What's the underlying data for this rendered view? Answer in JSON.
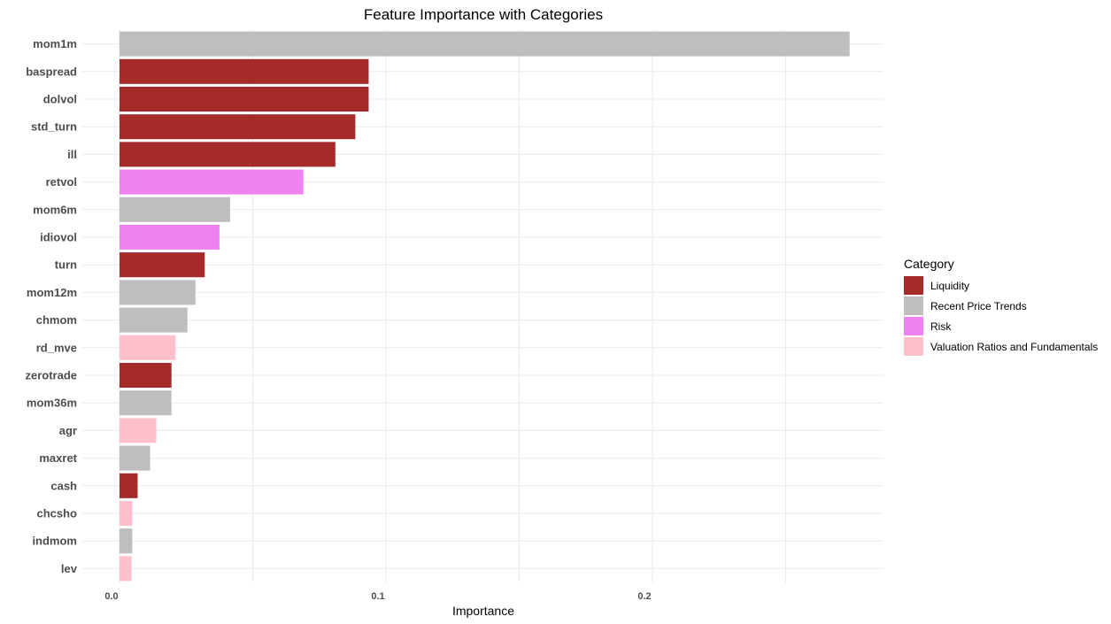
{
  "chart_data": {
    "type": "bar",
    "orientation": "horizontal",
    "title": "Feature Importance with Categories",
    "xlabel": "Importance",
    "ylabel": "",
    "xlim": [
      -0.007,
      0.29
    ],
    "xticks": [
      0.0,
      0.1,
      0.2
    ],
    "xtick_labels": [
      "0.0",
      "0.1",
      "0.2"
    ],
    "grid": true,
    "legend_position": "right",
    "legend_title": "Category",
    "categories_legend": [
      {
        "name": "Liquidity",
        "color": "#a52a2a"
      },
      {
        "name": "Recent Price Trends",
        "color": "#bebebe"
      },
      {
        "name": "Risk",
        "color": "#ee82ee"
      },
      {
        "name": "Valuation Ratios and Fundamentals",
        "color": "#ffc0cb"
      }
    ],
    "bars": [
      {
        "feature": "mom1m",
        "value": 0.274,
        "category": "Recent Price Trends"
      },
      {
        "feature": "baspread",
        "value": 0.0935,
        "category": "Liquidity"
      },
      {
        "feature": "dolvol",
        "value": 0.0935,
        "category": "Liquidity"
      },
      {
        "feature": "std_turn",
        "value": 0.0885,
        "category": "Liquidity"
      },
      {
        "feature": "ill",
        "value": 0.081,
        "category": "Liquidity"
      },
      {
        "feature": "retvol",
        "value": 0.069,
        "category": "Risk"
      },
      {
        "feature": "mom6m",
        "value": 0.0415,
        "category": "Recent Price Trends"
      },
      {
        "feature": "idiovol",
        "value": 0.0375,
        "category": "Risk"
      },
      {
        "feature": "turn",
        "value": 0.032,
        "category": "Liquidity"
      },
      {
        "feature": "mom12m",
        "value": 0.0285,
        "category": "Recent Price Trends"
      },
      {
        "feature": "chmom",
        "value": 0.0255,
        "category": "Recent Price Trends"
      },
      {
        "feature": "rd_mve",
        "value": 0.021,
        "category": "Valuation Ratios and Fundamentals"
      },
      {
        "feature": "zerotrade",
        "value": 0.0195,
        "category": "Liquidity"
      },
      {
        "feature": "mom36m",
        "value": 0.0195,
        "category": "Recent Price Trends"
      },
      {
        "feature": "agr",
        "value": 0.0138,
        "category": "Valuation Ratios and Fundamentals"
      },
      {
        "feature": "maxret",
        "value": 0.0115,
        "category": "Recent Price Trends"
      },
      {
        "feature": "cash",
        "value": 0.0068,
        "category": "Liquidity"
      },
      {
        "feature": "chcsho",
        "value": 0.0048,
        "category": "Valuation Ratios and Fundamentals"
      },
      {
        "feature": "indmom",
        "value": 0.0048,
        "category": "Recent Price Trends"
      },
      {
        "feature": "lev",
        "value": 0.0045,
        "category": "Valuation Ratios and Fundamentals"
      }
    ]
  }
}
